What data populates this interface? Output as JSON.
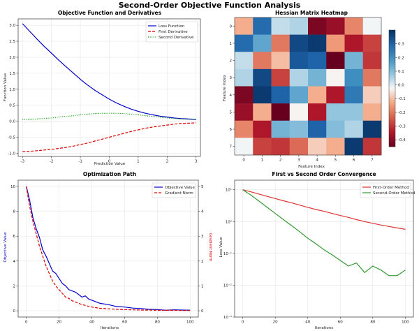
{
  "suptitle": "Second-Order Objective Function Analysis",
  "chart_data": [
    {
      "type": "line",
      "title": "Objective Function and Derivatives",
      "xlabel": "Prediction Value",
      "ylabel": "Function Value",
      "xlim": [
        -3.15,
        3.15
      ],
      "ylim": [
        -1.1,
        3.2
      ],
      "xticks": [
        -3,
        -2,
        -1,
        0,
        1,
        2,
        3
      ],
      "yticks": [
        -1.0,
        -0.5,
        0.0,
        0.5,
        1.0,
        1.5,
        2.0,
        2.5,
        3.0
      ],
      "ytick_labels": [
        "-1.0",
        "-0.5",
        "0.0",
        "0.5",
        "1.0",
        "1.5",
        "2.0",
        "2.5",
        "3.0"
      ],
      "grid": true,
      "legend": "top-right",
      "x": [
        -3.0,
        -2.75,
        -2.5,
        -2.25,
        -2.0,
        -1.75,
        -1.5,
        -1.25,
        -1.0,
        -0.75,
        -0.5,
        -0.25,
        0.0,
        0.25,
        0.5,
        0.75,
        1.0,
        1.25,
        1.5,
        1.75,
        2.0,
        2.25,
        2.5,
        2.75,
        3.0
      ],
      "series": [
        {
          "name": "Loss Function",
          "color": "#0000cc",
          "style": "solid",
          "values": [
            3.05,
            2.81,
            2.57,
            2.34,
            2.13,
            1.91,
            1.71,
            1.51,
            1.31,
            1.13,
            0.97,
            0.83,
            0.69,
            0.57,
            0.47,
            0.38,
            0.31,
            0.25,
            0.2,
            0.16,
            0.13,
            0.1,
            0.08,
            0.07,
            0.05
          ]
        },
        {
          "name": "First Derivative",
          "color": "#dd0000",
          "style": "dashed",
          "values": [
            -0.95,
            -0.94,
            -0.92,
            -0.9,
            -0.88,
            -0.85,
            -0.82,
            -0.78,
            -0.73,
            -0.68,
            -0.62,
            -0.56,
            -0.5,
            -0.44,
            -0.38,
            -0.32,
            -0.27,
            -0.22,
            -0.18,
            -0.15,
            -0.12,
            -0.09,
            -0.07,
            -0.06,
            -0.05
          ]
        },
        {
          "name": "Second Derivative",
          "color": "#009900",
          "style": "dotted",
          "values": [
            0.05,
            0.06,
            0.07,
            0.09,
            0.1,
            0.13,
            0.15,
            0.17,
            0.2,
            0.22,
            0.24,
            0.25,
            0.25,
            0.25,
            0.24,
            0.22,
            0.2,
            0.17,
            0.15,
            0.13,
            0.1,
            0.09,
            0.07,
            0.06,
            0.05
          ]
        }
      ]
    },
    {
      "type": "heatmap",
      "title": "Hessian Matrix Heatmap",
      "xlabel": "Feature Index",
      "ylabel": "Feature Index",
      "x_categories": [
        "0",
        "1",
        "2",
        "3",
        "4",
        "5",
        "6",
        "7"
      ],
      "y_categories": [
        "0",
        "1",
        "2",
        "3",
        "4",
        "5",
        "6",
        "7"
      ],
      "colorbar_range": [
        -0.45,
        0.4
      ],
      "colorbar_ticks": [
        0.3,
        0.2,
        0.1,
        0.0,
        -0.1,
        -0.2,
        -0.3,
        -0.4
      ],
      "colorbar_tick_labels": [
        "0.3",
        "0.2",
        "0.1",
        "0.0",
        "-0.1",
        "-0.2",
        "-0.3",
        "-0.4"
      ],
      "colormap": "RdBu",
      "values": [
        [
          -0.12,
          0.28,
          0.03,
          0.05,
          -0.42,
          -0.38,
          -0.18,
          -0.02
        ],
        [
          0.28,
          0.15,
          -0.2,
          0.35,
          0.38,
          -0.15,
          -0.35,
          -0.28
        ],
        [
          0.03,
          -0.2,
          -0.1,
          0.32,
          0.3,
          -0.45,
          0.12,
          -0.3
        ],
        [
          0.05,
          0.35,
          -0.28,
          0.05,
          0.12,
          -0.03,
          0.2,
          -0.2
        ],
        [
          -0.42,
          0.38,
          0.3,
          0.15,
          -0.12,
          -0.35,
          0.25,
          -0.08
        ],
        [
          -0.38,
          -0.12,
          -0.45,
          -0.03,
          -0.35,
          0.08,
          0.08,
          -0.12
        ],
        [
          -0.18,
          -0.35,
          0.12,
          0.1,
          0.3,
          0.1,
          0.05,
          0.38
        ],
        [
          -0.02,
          -0.28,
          -0.3,
          -0.22,
          -0.08,
          -0.12,
          0.38,
          -0.3
        ]
      ]
    },
    {
      "type": "line",
      "title": "Optimization Path",
      "xlabel": "Iterations",
      "ylabel": "Objective Value",
      "y2label": "Gradient Norm",
      "xlim": [
        -5,
        105
      ],
      "ylim": [
        -0.5,
        10.5
      ],
      "y2lim": [
        -0.25,
        5.25
      ],
      "xticks": [
        0,
        20,
        40,
        60,
        80,
        100
      ],
      "yticks": [
        0,
        2,
        4,
        6,
        8,
        10
      ],
      "y2ticks": [
        0,
        1,
        2,
        3,
        4,
        5
      ],
      "grid": true,
      "legend": "top-right",
      "x": [
        0,
        2,
        4,
        6,
        8,
        10,
        12,
        14,
        16,
        18,
        20,
        22,
        24,
        26,
        28,
        30,
        32,
        34,
        36,
        38,
        40,
        45,
        50,
        55,
        60,
        65,
        70,
        75,
        80,
        85,
        90,
        95,
        100
      ],
      "series": [
        {
          "name": "Objective Value",
          "color": "#0000cc",
          "style": "solid",
          "axis": "left",
          "values": [
            10.0,
            8.9,
            7.5,
            6.6,
            5.9,
            4.9,
            4.4,
            3.8,
            3.2,
            3.0,
            2.6,
            2.2,
            2.0,
            1.7,
            1.6,
            1.5,
            1.3,
            1.1,
            1.2,
            0.95,
            0.85,
            0.6,
            0.5,
            0.35,
            0.3,
            0.22,
            0.18,
            0.12,
            0.1,
            0.05,
            0.08,
            0.06,
            0.05
          ]
        },
        {
          "name": "Gradient Norm",
          "color": "#dd0000",
          "style": "dashed",
          "axis": "right",
          "values": [
            5.0,
            4.2,
            3.6,
            3.1,
            2.6,
            2.2,
            1.8,
            1.5,
            1.2,
            1.0,
            0.85,
            0.7,
            0.55,
            0.5,
            0.4,
            0.35,
            0.3,
            0.25,
            0.22,
            0.18,
            0.15,
            0.1,
            0.08,
            0.06,
            0.05,
            0.04,
            0.03,
            0.03,
            0.02,
            0.02,
            0.02,
            0.01,
            0.01
          ]
        }
      ]
    },
    {
      "type": "line",
      "title": "First vs Second Order Convergence",
      "xlabel": "Iterations",
      "ylabel": "Loss Value",
      "yscale": "log",
      "xlim": [
        -5,
        105
      ],
      "ylim": [
        0.001,
        20
      ],
      "xticks": [
        0,
        20,
        40,
        60,
        80,
        100
      ],
      "yticks": [
        0.001,
        0.01,
        0.1,
        1,
        10
      ],
      "ytick_labels": [
        "10⁻³",
        "10⁻²",
        "10⁻¹",
        "10⁰",
        "10¹"
      ],
      "grid": true,
      "legend": "top-right",
      "x": [
        0,
        5,
        10,
        15,
        20,
        25,
        30,
        35,
        40,
        45,
        50,
        55,
        60,
        65,
        70,
        75,
        80,
        85,
        90,
        95,
        100
      ],
      "series": [
        {
          "name": "First-Order Method",
          "color": "#dd3333",
          "style": "solid",
          "values": [
            10,
            8.6,
            7.3,
            6.2,
            5.3,
            4.5,
            3.9,
            3.3,
            2.8,
            2.4,
            2.1,
            1.8,
            1.55,
            1.35,
            1.15,
            1.0,
            0.88,
            0.78,
            0.7,
            0.63,
            0.57
          ]
        },
        {
          "name": "Second-Order Method",
          "color": "#339933",
          "style": "solid",
          "values": [
            10,
            6.8,
            4.4,
            2.8,
            1.8,
            1.15,
            0.75,
            0.48,
            0.3,
            0.2,
            0.13,
            0.09,
            0.06,
            0.04,
            0.05,
            0.025,
            0.04,
            0.03,
            0.02,
            0.02,
            0.03
          ]
        }
      ]
    }
  ]
}
